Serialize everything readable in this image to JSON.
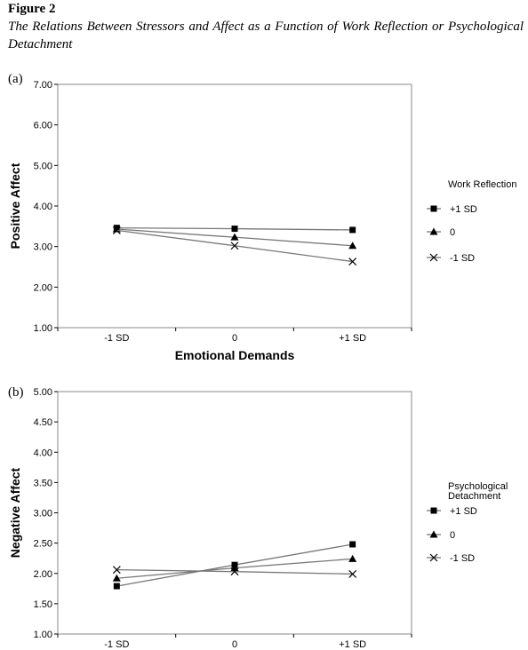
{
  "figure": {
    "label": "Figure 2",
    "title": "The Relations Between Stressors and Affect as a Function of Work Reflection or Psychological Detachment"
  },
  "chart_data": [
    {
      "panel": "(a)",
      "type": "line",
      "categories": [
        "-1 SD",
        "0",
        "+1 SD"
      ],
      "xlabel": "Emotional Demands",
      "ylabel": "Positive Affect",
      "ylim": [
        1.0,
        7.0
      ],
      "yticks": [
        "1.00",
        "2.00",
        "3.00",
        "4.00",
        "5.00",
        "6.00",
        "7.00"
      ],
      "legend_title": [
        "Work Reflection"
      ],
      "legend_position": "right",
      "grid": false,
      "series": [
        {
          "name": "+1 SD",
          "marker": "square",
          "values": [
            3.46,
            3.44,
            3.41
          ]
        },
        {
          "name": "0",
          "marker": "triangle",
          "values": [
            3.43,
            3.23,
            3.02
          ]
        },
        {
          "name": "-1 SD",
          "marker": "x",
          "values": [
            3.4,
            3.02,
            2.63
          ]
        }
      ]
    },
    {
      "panel": "(b)",
      "type": "line",
      "categories": [
        "-1 SD",
        "0",
        "+1 SD"
      ],
      "xlabel": "",
      "ylabel": "Negative Affect",
      "ylim": [
        1.0,
        5.0
      ],
      "yticks": [
        "1.00",
        "1.50",
        "2.00",
        "2.50",
        "3.00",
        "3.50",
        "4.00",
        "4.50",
        "5.00"
      ],
      "legend_title": [
        "Psychological",
        "Detachment"
      ],
      "legend_position": "right",
      "grid": false,
      "series": [
        {
          "name": "+1 SD",
          "marker": "square",
          "values": [
            1.79,
            2.14,
            2.48
          ]
        },
        {
          "name": "0",
          "marker": "triangle",
          "values": [
            1.92,
            2.09,
            2.24
          ]
        },
        {
          "name": "-1 SD",
          "marker": "x",
          "values": [
            2.06,
            2.03,
            1.99
          ]
        }
      ]
    }
  ]
}
